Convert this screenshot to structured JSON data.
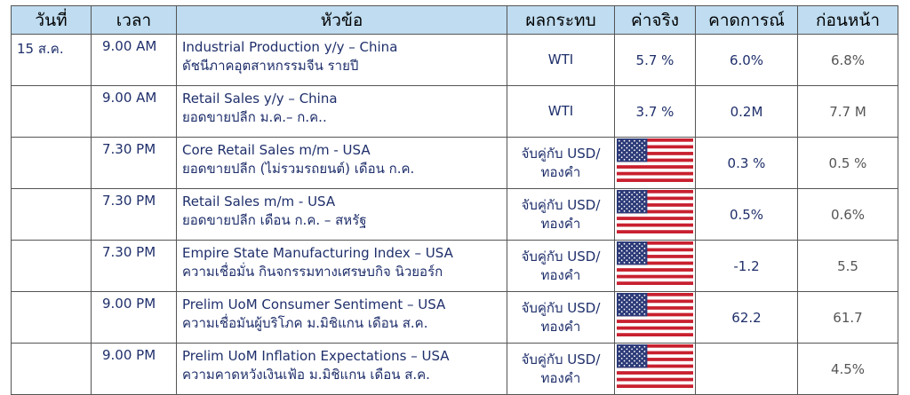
{
  "headers": {
    "date": "วันที่",
    "time": "เวลา",
    "topic": "หัวข้อ",
    "impact": "ผลกระทบ",
    "actual": "ค่าจริง",
    "forecast": "คาดการณ์",
    "previous": "ก่อนหน้า"
  },
  "rows": [
    {
      "date": "15 ส.ค.",
      "time": "9.00 AM",
      "topic_en": "Industrial  Production y/y – China",
      "topic_th": "ดัชนีภาคอุตสาหกรรมจีน รายปี",
      "impact": "WTI",
      "impact2": "",
      "actual": "5.7 %",
      "flag": "",
      "forecast": "6.0%",
      "previous": "6.8%"
    },
    {
      "date": "",
      "time": "9.00 AM",
      "topic_en": "Retail Sales y/y – China",
      "topic_th": "ยอดขายปลีก ม.ค.– ก.ค..",
      "impact": "WTI",
      "impact2": "",
      "actual": "3.7 %",
      "flag": "",
      "forecast": "0.2M",
      "previous": "7.7 M"
    },
    {
      "date": "",
      "time": "7.30 PM",
      "topic_en": "Core Retail Sales m/m - USA",
      "topic_th": "ยอดขายปลีก (ไม่รวมรถยนต์) เดือน ก.ค.",
      "impact": "จับคู่กับ USD/",
      "impact2": "ทองคำ",
      "actual": "",
      "flag": "us-flag-icon",
      "forecast": "0.3 %",
      "previous": "0.5 %"
    },
    {
      "date": "",
      "time": "7.30 PM",
      "topic_en": "Retail Sales m/m - USA",
      "topic_th": "ยอดขายปลีก เดือน ก.ค. – สหรัฐ",
      "impact": "จับคู่กับ USD/",
      "impact2": "ทองคำ",
      "actual": "",
      "flag": "us-flag-icon",
      "forecast": "0.5%",
      "previous": "0.6%"
    },
    {
      "date": "",
      "time": "7.30 PM",
      "topic_en": "Empire State Manufacturing Index – USA",
      "topic_th": "ความเชื่อมั่น กินจกรรมทางเศรษบกิจ นิวยอร์ก",
      "impact": "จับคู่กับ USD/",
      "impact2": "ทองคำ",
      "actual": "",
      "flag": "us-flag-icon",
      "forecast": "-1.2",
      "previous": "5.5"
    },
    {
      "date": "",
      "time": "9.00 PM",
      "topic_en": "Prelim UoM Consumer Sentiment – USA",
      "topic_th": "ความเชื่อมันผู้บริโภค ม.มิชิแกน เดือน ส.ค.",
      "impact": "จับคู่กับ USD/",
      "impact2": "ทองคำ",
      "actual": "",
      "flag": "us-flag-icon",
      "forecast": "62.2",
      "previous": "61.7"
    },
    {
      "date": "",
      "time": "9.00 PM",
      "topic_en": "Prelim UoM Inflation Expectations – USA",
      "topic_th": "ความคาดหวังเงินเฟ้อ ม.มิชิแกน เดือน ส.ค.",
      "impact": "จับคู่กับ USD/",
      "impact2": "ทองคำ",
      "actual": "",
      "flag": "us-flag-icon",
      "forecast": "",
      "previous": "4.5%"
    }
  ]
}
